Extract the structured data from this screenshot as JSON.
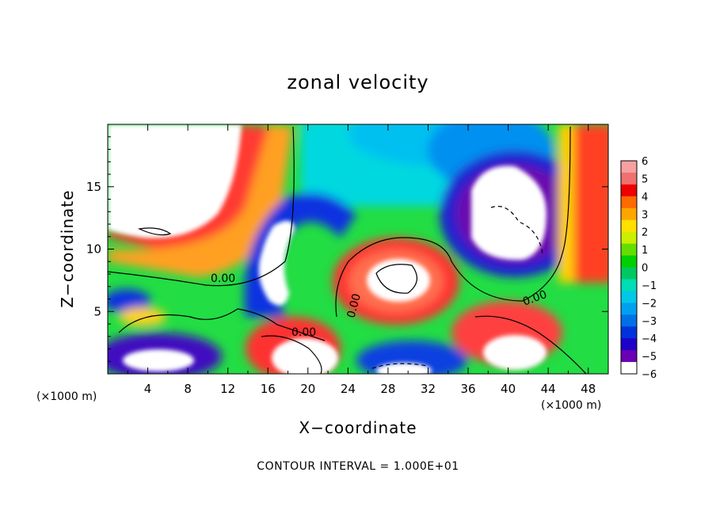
{
  "chart_data": {
    "type": "heatmap",
    "title": "zonal velocity",
    "xlabel": "X−coordinate",
    "ylabel": "Z−coordinate",
    "x_unit": "(×1000 m)",
    "y_unit": "(×1000 m)",
    "xlim": [
      0,
      50
    ],
    "ylim": [
      0,
      20
    ],
    "x_ticks": [
      4,
      8,
      12,
      16,
      20,
      24,
      28,
      32,
      36,
      40,
      44,
      48
    ],
    "y_ticks": [
      5,
      10,
      15
    ],
    "colorbar": {
      "min": -6,
      "max": 6,
      "ticks": [
        "6",
        "5",
        "4",
        "3",
        "2",
        "1",
        "0",
        "−1",
        "−2",
        "−3",
        "−4",
        "−5",
        "−6"
      ],
      "colors": [
        "#f7a0a0",
        "#f07070",
        "#ee0000",
        "#ff6a00",
        "#ffa500",
        "#ffe000",
        "#ccee00",
        "#66dd00",
        "#00d000",
        "#00c860",
        "#00dcb4",
        "#00c8e6",
        "#00a0f0",
        "#0070e6",
        "#0032dc",
        "#1e00c8",
        "#6a00b4",
        "#ffffff"
      ],
      "saturation_color": "#ffffff"
    },
    "contour_labels": [
      "0.00",
      "0.00",
      "0.00",
      "0.00"
    ],
    "footer": "CONTOUR INTERVAL = 1.000E+01",
    "grid": false
  }
}
